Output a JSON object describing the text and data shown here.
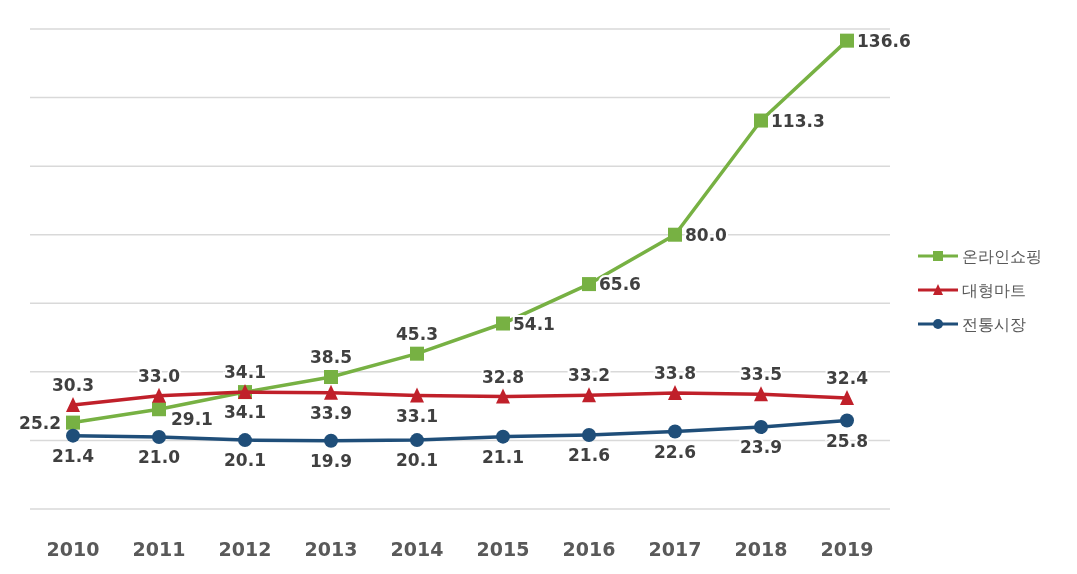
{
  "chart_data": {
    "type": "line",
    "categories": [
      "2010",
      "2011",
      "2012",
      "2013",
      "2014",
      "2015",
      "2016",
      "2017",
      "2018",
      "2019"
    ],
    "series": [
      {
        "name": "온라인쇼핑",
        "color": "#77b143",
        "marker": "square",
        "values": [
          25.2,
          29.1,
          34.1,
          38.5,
          45.3,
          54.1,
          65.6,
          80.0,
          113.3,
          136.6
        ],
        "value_labels": [
          "25.2",
          "29.1",
          "34.1",
          "38.5",
          "45.3",
          "54.1",
          "65.6",
          "80.0",
          "113.3",
          "136.6"
        ]
      },
      {
        "name": "대형마트",
        "color": "#c0202a",
        "marker": "triangle",
        "values": [
          30.3,
          33.0,
          34.1,
          33.9,
          33.1,
          32.8,
          33.2,
          33.8,
          33.5,
          32.4
        ],
        "value_labels": [
          "30.3",
          "33.0",
          "34.1",
          "33.9",
          "33.1",
          "32.8",
          "33.2",
          "33.8",
          "33.5",
          "32.4"
        ]
      },
      {
        "name": "전통시장",
        "color": "#1f4e79",
        "marker": "circle",
        "values": [
          21.4,
          21.0,
          20.1,
          19.9,
          20.1,
          21.1,
          21.6,
          22.6,
          23.9,
          25.8
        ],
        "value_labels": [
          "21.4",
          "21.0",
          "20.1",
          "19.9",
          "20.1",
          "21.1",
          "21.6",
          "22.6",
          "23.9",
          "25.8"
        ]
      }
    ],
    "ylim": [
      0,
      140
    ],
    "yticks": [
      {
        "value": 0,
        "label": null
      },
      {
        "value": 20,
        "label": null
      },
      {
        "value": 40,
        "label": null
      },
      {
        "value": 60,
        "label": null
      },
      {
        "value": 80,
        "label": null
      },
      {
        "value": 100,
        "label": null
      },
      {
        "value": 120,
        "label": null
      },
      {
        "value": 140,
        "label": null
      }
    ],
    "tick_labels": "x",
    "grid": "y",
    "legend": "right",
    "line_style": "solid"
  }
}
